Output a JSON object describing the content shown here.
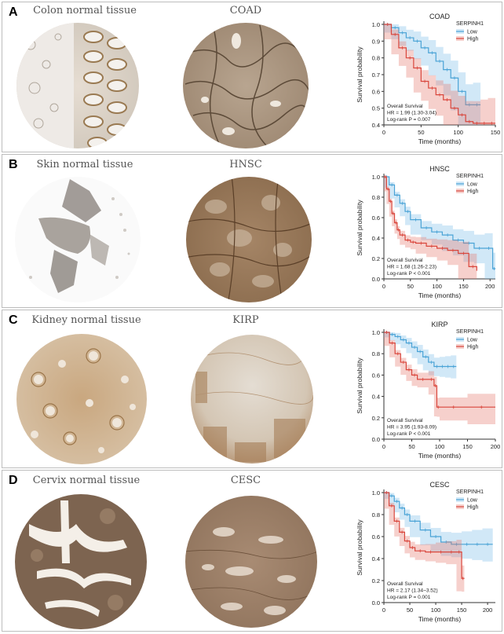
{
  "panels": [
    {
      "letter": "A",
      "normal_title": "Colon normal tissue",
      "tumor_title": "COAD",
      "chart": {
        "title": "COAD",
        "legend_title": "SERPINH1",
        "legend": [
          "Low",
          "High"
        ],
        "xlabel": "Time (months)",
        "ylabel": "Survival probability",
        "xticks": [
          0,
          50,
          100,
          150
        ],
        "yticks": [
          0.4,
          0.5,
          0.6,
          0.7,
          0.8,
          0.9,
          1.0
        ],
        "stats": [
          "Overall Survival",
          "HR = 1.99 (1.30-3.04)",
          "Log-rank P = 0.007"
        ]
      }
    },
    {
      "letter": "B",
      "normal_title": "Skin normal tissue",
      "tumor_title": "HNSC",
      "chart": {
        "title": "HNSC",
        "legend_title": "SERPINH1",
        "legend": [
          "Low",
          "High"
        ],
        "xlabel": "Time (months)",
        "ylabel": "Survival probability",
        "xticks": [
          0,
          50,
          100,
          150,
          200
        ],
        "yticks": [
          0.0,
          0.2,
          0.4,
          0.6,
          0.8,
          1.0
        ],
        "stats": [
          "Overall Survival",
          "HR = 1.68 (1.26-2.23)",
          "Log-rank P < 0.001"
        ]
      }
    },
    {
      "letter": "C",
      "normal_title": "Kidney normal tissue",
      "tumor_title": "KIRP",
      "chart": {
        "title": "KIRP",
        "legend_title": "SERPINH1",
        "legend": [
          "Low",
          "High"
        ],
        "xlabel": "Time (months)",
        "ylabel": "Survival probability",
        "xticks": [
          0,
          50,
          100,
          150,
          200
        ],
        "yticks": [
          0.0,
          0.2,
          0.4,
          0.6,
          0.8,
          1.0
        ],
        "stats": [
          "Overall Survival",
          "HR = 3.95 (1.93-8.09)",
          "Log-rank P < 0.001"
        ]
      }
    },
    {
      "letter": "D",
      "normal_title": "Cervix normal tissue",
      "tumor_title": "CESC",
      "chart": {
        "title": "CESC",
        "legend_title": "SERPINH1",
        "legend": [
          "Low",
          "High"
        ],
        "xlabel": "Time (months)",
        "ylabel": "Survival probability",
        "xticks": [
          0,
          50,
          100,
          150,
          200
        ],
        "yticks": [
          0.0,
          0.2,
          0.4,
          0.6,
          0.8,
          1.0
        ],
        "stats": [
          "Overall Survival",
          "HR = 2.17 (1.34~3.52)",
          "Log-rank P = 0.001"
        ]
      }
    }
  ],
  "chart_data": [
    {
      "type": "line",
      "title": "COAD",
      "xlabel": "Time (months)",
      "ylabel": "Survival probability",
      "xlim": [
        0,
        150
      ],
      "ylim": [
        0.4,
        1.0
      ],
      "legend_position": "top-right",
      "series": [
        {
          "name": "Low",
          "x": [
            0,
            10,
            20,
            30,
            40,
            50,
            60,
            70,
            80,
            90,
            100,
            110,
            120,
            130
          ],
          "y": [
            1.0,
            0.98,
            0.95,
            0.92,
            0.9,
            0.86,
            0.83,
            0.78,
            0.73,
            0.68,
            0.6,
            0.52,
            0.52,
            0.52
          ]
        },
        {
          "name": "High",
          "x": [
            0,
            10,
            20,
            30,
            40,
            50,
            60,
            70,
            80,
            90,
            100,
            110,
            120,
            130,
            140,
            150
          ],
          "y": [
            1.0,
            0.94,
            0.86,
            0.8,
            0.74,
            0.66,
            0.62,
            0.58,
            0.55,
            0.5,
            0.46,
            0.42,
            0.41,
            0.41,
            0.41,
            0.41
          ]
        }
      ]
    },
    {
      "type": "line",
      "title": "HNSC",
      "xlabel": "Time (months)",
      "ylabel": "Survival probability",
      "xlim": [
        0,
        210
      ],
      "ylim": [
        0.0,
        1.0
      ],
      "legend_position": "top-right",
      "series": [
        {
          "name": "Low",
          "x": [
            0,
            10,
            20,
            30,
            40,
            50,
            70,
            90,
            110,
            130,
            150,
            170,
            190,
            205,
            210
          ],
          "y": [
            1.0,
            0.92,
            0.82,
            0.74,
            0.66,
            0.58,
            0.5,
            0.46,
            0.43,
            0.38,
            0.35,
            0.3,
            0.3,
            0.1,
            0.1
          ]
        },
        {
          "name": "High",
          "x": [
            0,
            5,
            10,
            15,
            20,
            25,
            30,
            40,
            50,
            60,
            80,
            100,
            120,
            140,
            160,
            175
          ],
          "y": [
            1.0,
            0.88,
            0.76,
            0.64,
            0.55,
            0.48,
            0.43,
            0.38,
            0.36,
            0.35,
            0.32,
            0.3,
            0.28,
            0.25,
            0.12,
            0.08
          ]
        }
      ]
    },
    {
      "type": "line",
      "title": "KIRP",
      "xlabel": "Time (months)",
      "ylabel": "Survival probability",
      "xlim": [
        0,
        200
      ],
      "ylim": [
        0.0,
        1.0
      ],
      "legend_position": "top-right",
      "series": [
        {
          "name": "Low",
          "x": [
            0,
            10,
            20,
            30,
            40,
            50,
            60,
            70,
            80,
            90,
            100,
            110,
            120,
            130
          ],
          "y": [
            1.0,
            0.98,
            0.96,
            0.93,
            0.9,
            0.86,
            0.82,
            0.77,
            0.72,
            0.68,
            0.68,
            0.68,
            0.68,
            0.68
          ]
        },
        {
          "name": "High",
          "x": [
            0,
            10,
            20,
            30,
            40,
            50,
            60,
            80,
            90,
            95,
            100,
            150,
            200
          ],
          "y": [
            1.0,
            0.9,
            0.8,
            0.72,
            0.65,
            0.6,
            0.56,
            0.56,
            0.5,
            0.3,
            0.3,
            0.3,
            0.3
          ]
        }
      ]
    },
    {
      "type": "line",
      "title": "CESC",
      "xlabel": "Time (months)",
      "ylabel": "Survival probability",
      "xlim": [
        0,
        215
      ],
      "ylim": [
        0.0,
        1.0
      ],
      "legend_position": "top-right",
      "series": [
        {
          "name": "Low",
          "x": [
            0,
            10,
            20,
            30,
            40,
            50,
            70,
            90,
            110,
            130,
            150,
            170,
            190,
            210
          ],
          "y": [
            1.0,
            0.97,
            0.92,
            0.86,
            0.8,
            0.74,
            0.66,
            0.6,
            0.55,
            0.53,
            0.53,
            0.53,
            0.53,
            0.53
          ]
        },
        {
          "name": "High",
          "x": [
            0,
            10,
            20,
            30,
            40,
            50,
            60,
            80,
            100,
            120,
            140,
            150,
            155
          ],
          "y": [
            1.0,
            0.88,
            0.74,
            0.64,
            0.56,
            0.5,
            0.47,
            0.46,
            0.46,
            0.46,
            0.46,
            0.22,
            0.22
          ]
        }
      ]
    }
  ]
}
